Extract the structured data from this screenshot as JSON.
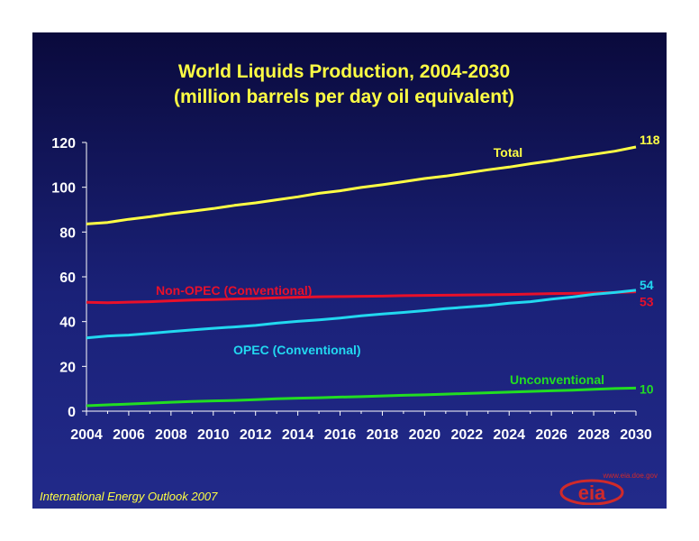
{
  "chart_data": {
    "type": "line",
    "title": [
      "World Liquids Production, 2004-2030",
      "(million barrels per day oil equivalent)"
    ],
    "xlim": [
      2004,
      2030
    ],
    "ylim": [
      0,
      120
    ],
    "x_ticks": [
      "2004",
      "2006",
      "2008",
      "2010",
      "2012",
      "2014",
      "2016",
      "2018",
      "2020",
      "2022",
      "2024",
      "2026",
      "2028",
      "2030"
    ],
    "y_ticks": [
      "0",
      "20",
      "40",
      "60",
      "80",
      "100",
      "120"
    ],
    "x": [
      2004,
      2005,
      2006,
      2007,
      2008,
      2009,
      2010,
      2011,
      2012,
      2013,
      2014,
      2015,
      2016,
      2017,
      2018,
      2019,
      2020,
      2021,
      2022,
      2023,
      2024,
      2025,
      2026,
      2027,
      2028,
      2029,
      2030
    ],
    "series": [
      {
        "name": "Total",
        "color": "#ffff44",
        "end_label": "118",
        "values": [
          83.6,
          84.3,
          85.7,
          86.8,
          88.2,
          89.3,
          90.5,
          91.9,
          93.0,
          94.4,
          95.7,
          97.3,
          98.4,
          99.9,
          101.1,
          102.5,
          103.9,
          105.0,
          106.4,
          107.8,
          109.0,
          110.5,
          111.8,
          113.3,
          114.7,
          116.1,
          118.0
        ]
      },
      {
        "name": "Non-OPEC (Conventional)",
        "color": "#e8102a",
        "end_label": "53",
        "values": [
          48.6,
          48.4,
          48.7,
          48.9,
          49.3,
          49.6,
          49.8,
          50.1,
          50.3,
          50.6,
          50.9,
          51.1,
          51.2,
          51.3,
          51.4,
          51.6,
          51.7,
          51.8,
          51.9,
          52.0,
          52.1,
          52.3,
          52.5,
          52.6,
          52.8,
          53.0,
          53.3
        ]
      },
      {
        "name": "OPEC (Conventional)",
        "color": "#22d8f0",
        "end_label": "54",
        "values": [
          32.7,
          33.6,
          34.0,
          34.7,
          35.5,
          36.3,
          37.0,
          37.6,
          38.3,
          39.3,
          40.1,
          40.8,
          41.6,
          42.6,
          43.4,
          44.1,
          44.9,
          45.8,
          46.5,
          47.2,
          48.2,
          48.9,
          50.0,
          51.0,
          52.2,
          53.0,
          54.0
        ]
      },
      {
        "name": "Unconventional",
        "color": "#22dd22",
        "end_label": "10",
        "values": [
          2.4,
          2.8,
          3.2,
          3.6,
          4.0,
          4.3,
          4.6,
          4.8,
          5.1,
          5.5,
          5.8,
          6.0,
          6.3,
          6.5,
          6.8,
          7.1,
          7.3,
          7.6,
          7.9,
          8.2,
          8.5,
          8.8,
          9.1,
          9.4,
          9.8,
          10.1,
          10.3
        ]
      }
    ]
  },
  "footer": "International Energy Outlook 2007",
  "logo": {
    "url_text": "www.eia.doe.gov",
    "word": "eia"
  }
}
